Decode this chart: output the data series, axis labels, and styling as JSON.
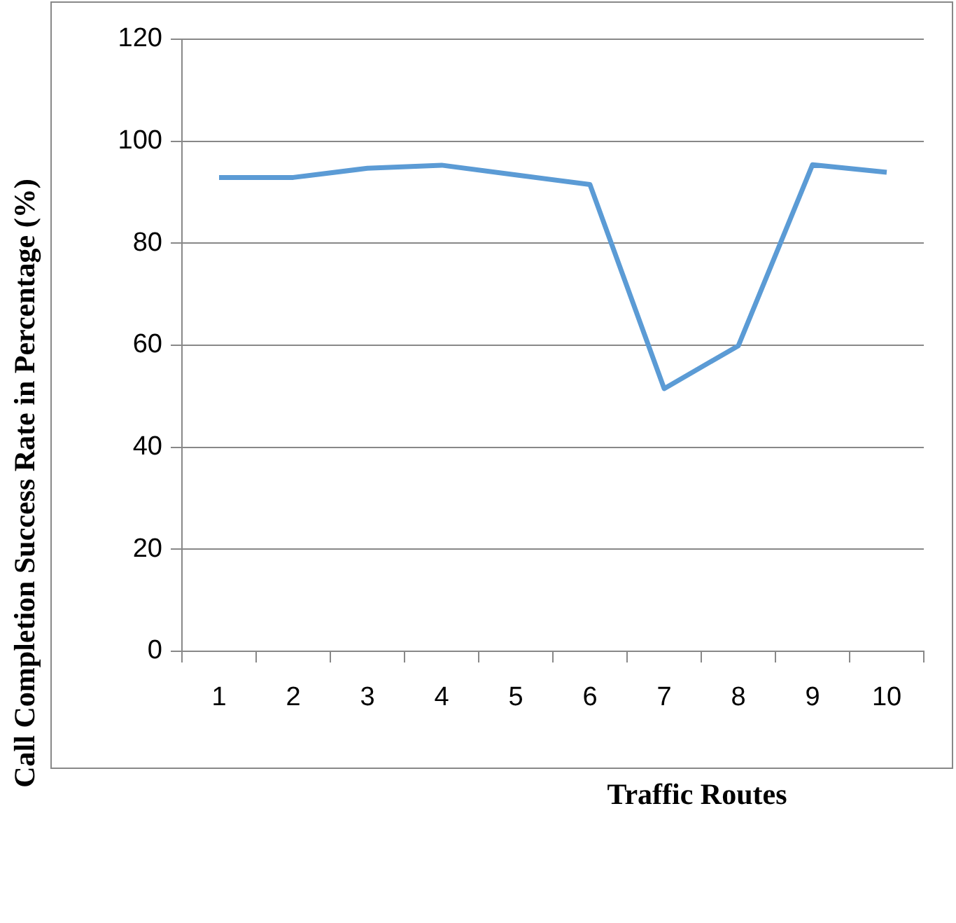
{
  "chart_data": {
    "type": "line",
    "xlabel": "Traffic Routes",
    "ylabel": "Call Completion Success Rate in Percentage (%)",
    "categories": [
      "1",
      "2",
      "3",
      "4",
      "5",
      "6",
      "7",
      "8",
      "9",
      "10"
    ],
    "series": [
      {
        "color": "#5b9bd5",
        "values": [
          92.9,
          92.9,
          94.7,
          95.3,
          93.4,
          91.5,
          51.5,
          59.9,
          95.4,
          93.9
        ]
      }
    ],
    "ylim": [
      0,
      120
    ],
    "yticks": [
      0,
      20,
      40,
      60,
      80,
      100,
      120
    ],
    "grid": "y",
    "legend": false,
    "marker": "none",
    "line_style": "solid"
  }
}
